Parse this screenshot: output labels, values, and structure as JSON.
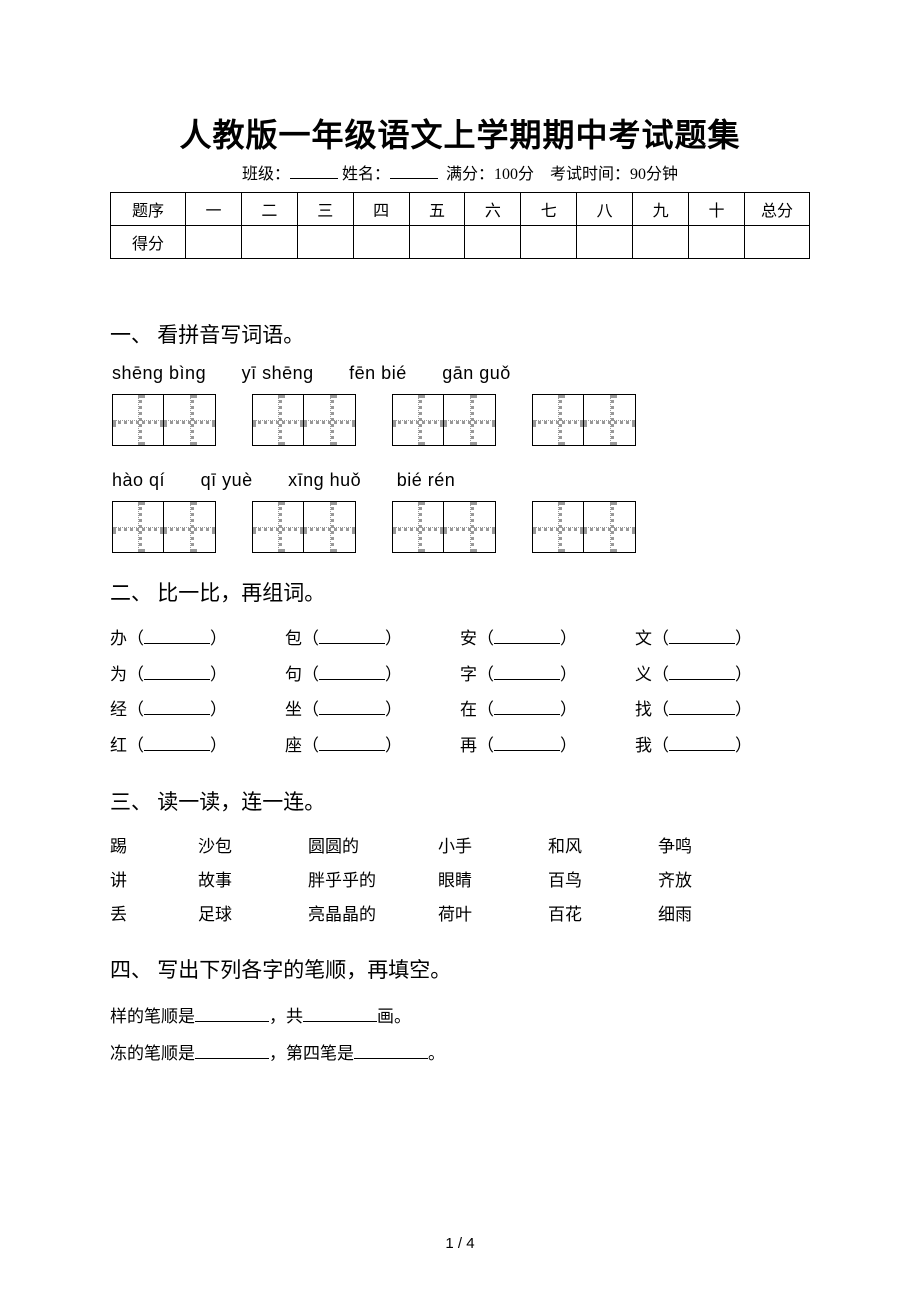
{
  "title": "人教版一年级语文上学期期中考试题集",
  "meta": {
    "class_label": "班级：",
    "name_label": "姓名：",
    "full_score_label": "满分：",
    "full_score": "100分",
    "time_label": "考试时间：",
    "time": "90分钟"
  },
  "score_table": {
    "row1_head": "题序",
    "cols": [
      "一",
      "二",
      "三",
      "四",
      "五",
      "六",
      "七",
      "八",
      "九",
      "十"
    ],
    "total_label": "总分",
    "row2_head": "得分"
  },
  "q1": {
    "heading": "一、 看拼音写词语。",
    "line1": [
      "shēng bìng",
      "yī shēng",
      "fēn bié",
      "gān guǒ"
    ],
    "line2": [
      "hào qí",
      "qī yuè",
      "xīng huǒ",
      "bié rén"
    ]
  },
  "q2": {
    "heading": "二、 比一比，再组词。",
    "rows": [
      [
        "办",
        "包",
        "安",
        "文"
      ],
      [
        "为",
        "句",
        "字",
        "义"
      ],
      [
        "经",
        "坐",
        "在",
        "找"
      ],
      [
        "红",
        "座",
        "再",
        "我"
      ]
    ]
  },
  "q3": {
    "heading": "三、 读一读，连一连。",
    "rows": [
      [
        "踢",
        "沙包",
        "圆圆的",
        "小手",
        "和风",
        "争鸣"
      ],
      [
        "讲",
        "故事",
        "胖乎乎的",
        "眼睛",
        "百鸟",
        "齐放"
      ],
      [
        "丢",
        "足球",
        "亮晶晶的",
        "荷叶",
        "百花",
        "细雨"
      ]
    ]
  },
  "q4": {
    "heading": "四、 写出下列各字的笔顺，再填空。",
    "line1_a": "样的笔顺是",
    "line1_b": "，共",
    "line1_c": "画。",
    "line2_a": "冻的笔顺是",
    "line2_b": "，第四笔是",
    "line2_c": "。"
  },
  "footer": "1 / 4"
}
